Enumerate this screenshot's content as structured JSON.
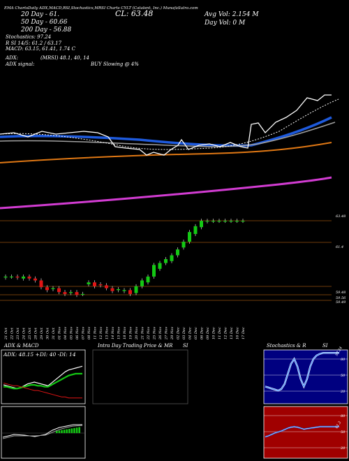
{
  "header": {
    "line1_left": "EMA ChartsDaily ADX,MACD,RSI,Stochastics,MRSI Charts CYLT (Catalent, Inc.) MunafaSutra.com",
    "ema20": "20  Day - 61.",
    "ema50": "50  Day - 60.66",
    "ema200": "200  Day - 56.88",
    "stoch": "Stochastics: 97.24",
    "rsi": "R      SI 14/5: 61.2 / 63.17",
    "macd": "MACD: 63.15,  61.41,  1.74  C",
    "adx": "ADX:",
    "mrsi": "(MRSI) 48.1,  40,  14",
    "adx_signal": "ADX  signal:",
    "buy": "BUY Slowing @ 4%",
    "cl": "CL: 63.48",
    "avg_vol": "Avg Vol: 2.154  M",
    "day_vol": "Day Vol: 0  M"
  },
  "price_levels": [
    "63.48",
    "61.4",
    "59.48",
    "59.56",
    "59.49"
  ],
  "dates": [
    "21 Oct",
    "22 Oct",
    "23 Oct",
    "24 Oct",
    "25 Oct",
    "28 Oct",
    "29 Oct",
    "30 Oct",
    "31 Oct",
    "01 Nov",
    "04 Nov",
    "05 Nov",
    "06 Nov",
    "07 Nov",
    "08 Nov",
    "11 Nov",
    "12 Nov",
    "13 Nov",
    "14 Nov",
    "15 Nov",
    "18 Nov",
    "19 Nov",
    "20 Nov",
    "21 Nov",
    "22 Nov",
    "25 Nov",
    "26 Nov",
    "27 Nov",
    "29 Nov",
    "02 Dec",
    "03 Dec",
    "04 Dec",
    "05 Dec",
    "06 Dec",
    "09 Dec",
    "10 Dec",
    "11 Dec",
    "12 Dec",
    "13 Dec",
    "16 Dec",
    "17 Dec"
  ],
  "panels": {
    "adx_macd_title": "ADX  & MACD",
    "adx_values": "ADX: 48.15  +DI: 40  -DI: 14",
    "intraday_title": "Intra  Day Trading Price  & MR",
    "intraday_si": "SI",
    "stoch_title": "Stochastics & R",
    "stoch_si": "SI",
    "stoch_ticks": [
      "80",
      "50",
      "20"
    ],
    "rsi_ticks": [
      "80",
      "50",
      "20"
    ],
    "stoch_value": "97.24",
    "rsi_value": "61.2"
  },
  "colors": {
    "up": "#14c814",
    "down": "#e01414",
    "ema_blue": "#1e5adc",
    "ema_orange": "#e07814",
    "ema_magenta": "#d23cd2",
    "panel_blue": "#000080",
    "panel_red": "#a00000"
  },
  "chart_data": [
    {
      "type": "candlestick",
      "x": [
        "21 Oct",
        "22 Oct",
        "23 Oct",
        "24 Oct",
        "25 Oct",
        "28 Oct",
        "29 Oct",
        "30 Oct",
        "31 Oct",
        "01 Nov",
        "04 Nov",
        "05 Nov",
        "06 Nov",
        "07 Nov",
        "08 Nov",
        "11 Nov",
        "12 Nov",
        "13 Nov",
        "14 Nov",
        "15 Nov",
        "18 Nov",
        "19 Nov",
        "20 Nov",
        "21 Nov",
        "22 Nov",
        "25 Nov",
        "26 Nov",
        "27 Nov",
        "29 Nov",
        "02 Dec",
        "03 Dec",
        "04 Dec",
        "05 Dec",
        "06 Dec",
        "09 Dec",
        "10 Dec",
        "11 Dec",
        "12 Dec",
        "13 Dec",
        "16 Dec",
        "17 Dec"
      ],
      "open": [
        60.55,
        60.6,
        60.6,
        60.5,
        60.6,
        60.5,
        60.4,
        60.05,
        59.95,
        60.0,
        59.8,
        59.75,
        59.8,
        59.7,
        60.2,
        60.3,
        60.2,
        60.15,
        60.0,
        59.9,
        59.85,
        59.9,
        59.75,
        60.1,
        60.3,
        60.6,
        61.0,
        61.3,
        61.4,
        61.7,
        62.1,
        62.4,
        62.8,
        63.15,
        63.45,
        63.48,
        63.48,
        63.48,
        63.48,
        63.48,
        63.48
      ],
      "close": [
        60.6,
        60.6,
        60.55,
        60.6,
        60.5,
        60.4,
        60.05,
        59.9,
        60.0,
        59.8,
        59.7,
        59.8,
        59.65,
        59.7,
        60.3,
        60.1,
        60.15,
        60.0,
        59.85,
        59.95,
        59.9,
        59.7,
        60.1,
        60.4,
        60.6,
        61.2,
        61.3,
        61.5,
        61.7,
        62.0,
        62.4,
        62.9,
        63.2,
        63.48,
        63.48,
        63.48,
        63.48,
        63.48,
        63.48,
        63.48,
        63.48
      ]
    },
    {
      "type": "line",
      "title": "ADX & MACD",
      "series": [
        {
          "values": [
            28,
            27,
            26,
            25,
            24,
            25,
            27,
            29,
            30,
            31,
            30,
            29,
            28,
            27,
            30,
            33,
            36,
            39,
            42,
            44,
            45,
            46,
            47,
            48
          ]
        },
        {
          "values": [
            26,
            26,
            25,
            24,
            24,
            25,
            26,
            27,
            28,
            28,
            27,
            27,
            26,
            26,
            28,
            30,
            32,
            34,
            36,
            38,
            39,
            40,
            40,
            40
          ]
        },
        {
          "values": [
            30,
            29,
            28,
            27,
            27,
            26,
            25,
            24,
            23,
            22,
            22,
            21,
            20,
            19,
            18,
            17,
            16,
            15,
            15,
            14,
            14,
            14,
            14,
            14
          ]
        }
      ]
    },
    {
      "type": "line",
      "title": "Stochastics & RSI",
      "series": [
        {
          "values": [
            30,
            28,
            26,
            24,
            22,
            25,
            35,
            55,
            75,
            85,
            70,
            45,
            30,
            45,
            70,
            85,
            92,
            95,
            97,
            97,
            97,
            97,
            97,
            97
          ]
        },
        {
          "values": [
            40,
            42,
            45,
            48,
            50,
            52,
            55,
            58,
            60,
            61,
            60,
            58,
            56,
            57,
            58,
            59,
            60,
            61,
            61,
            61,
            61,
            61,
            61,
            61
          ]
        }
      ]
    }
  ]
}
